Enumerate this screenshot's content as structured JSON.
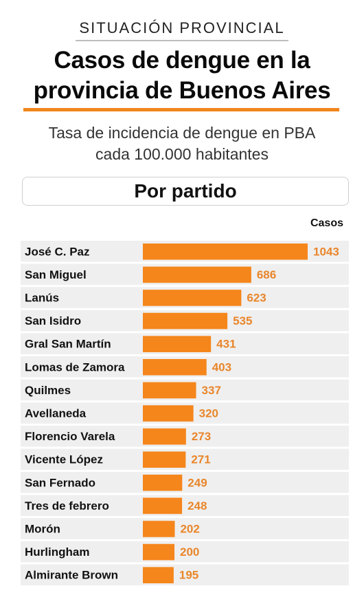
{
  "header": {
    "kicker": "SITUACIÓN PROVINCIAL",
    "title_line1": "Casos de dengue en la",
    "title_line2": "provincia de Buenos Aires",
    "subtitle_line1": "Tasa de incidencia de dengue en PBA",
    "subtitle_line2": "cada 100.000 habitantes",
    "section": "Por partido",
    "column_header": "Casos"
  },
  "colors": {
    "accent": "#f0861c",
    "bar": "#f5861c",
    "value_text": "#e9862b",
    "row_bg": "#efefef"
  },
  "chart_data": {
    "type": "bar",
    "orientation": "horizontal",
    "categories": [
      "José C. Paz",
      "San Miguel",
      "Lanús",
      "San Isidro",
      "Gral San Martín",
      "Lomas de Zamora",
      "Quilmes",
      "Avellaneda",
      "Florencio Varela",
      "Vicente López",
      "San Fernado",
      "Tres de febrero",
      "Morón",
      "Hurlingham",
      "Almirante Brown"
    ],
    "values": [
      1043,
      686,
      623,
      535,
      431,
      403,
      337,
      320,
      273,
      271,
      249,
      248,
      202,
      200,
      195
    ],
    "value_labels": [
      "1043",
      "686",
      "623",
      "535",
      "431",
      "403",
      "337",
      "320",
      "273",
      "271",
      "249",
      "248",
      "202",
      "200",
      "195"
    ],
    "title": "Casos de dengue en la provincia de Buenos Aires",
    "xlabel": "",
    "ylabel": "",
    "xlim": [
      0,
      1043
    ],
    "grid": false,
    "legend": "none"
  }
}
